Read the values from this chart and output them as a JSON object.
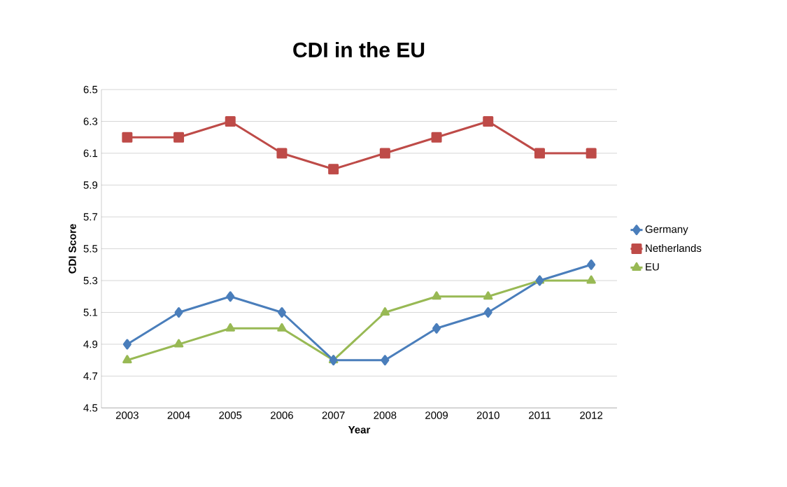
{
  "chart_data": {
    "type": "line",
    "title": "CDI in the EU",
    "xlabel": "Year",
    "ylabel": "CDI Score",
    "categories": [
      "2003",
      "2004",
      "2005",
      "2006",
      "2007",
      "2008",
      "2009",
      "2010",
      "2011",
      "2012"
    ],
    "series": [
      {
        "name": "Germany",
        "color": "#4a7ebb",
        "marker": "diamond",
        "values": [
          4.9,
          5.1,
          5.2,
          5.1,
          4.8,
          4.8,
          5.0,
          5.1,
          5.3,
          5.4
        ]
      },
      {
        "name": "Netherlands",
        "color": "#be4b48",
        "marker": "square",
        "values": [
          6.2,
          6.2,
          6.3,
          6.1,
          6.0,
          6.1,
          6.2,
          6.3,
          6.1,
          6.1
        ]
      },
      {
        "name": "EU",
        "color": "#98b954",
        "marker": "triangle",
        "values": [
          4.8,
          4.9,
          5.0,
          5.0,
          4.8,
          5.1,
          5.2,
          5.2,
          5.3,
          5.3
        ]
      }
    ],
    "ylim": [
      4.5,
      6.5
    ],
    "yticks": [
      4.5,
      4.7,
      4.9,
      5.1,
      5.3,
      5.5,
      5.7,
      5.9,
      6.1,
      6.3,
      6.5
    ],
    "grid": "y",
    "legend": "right"
  }
}
